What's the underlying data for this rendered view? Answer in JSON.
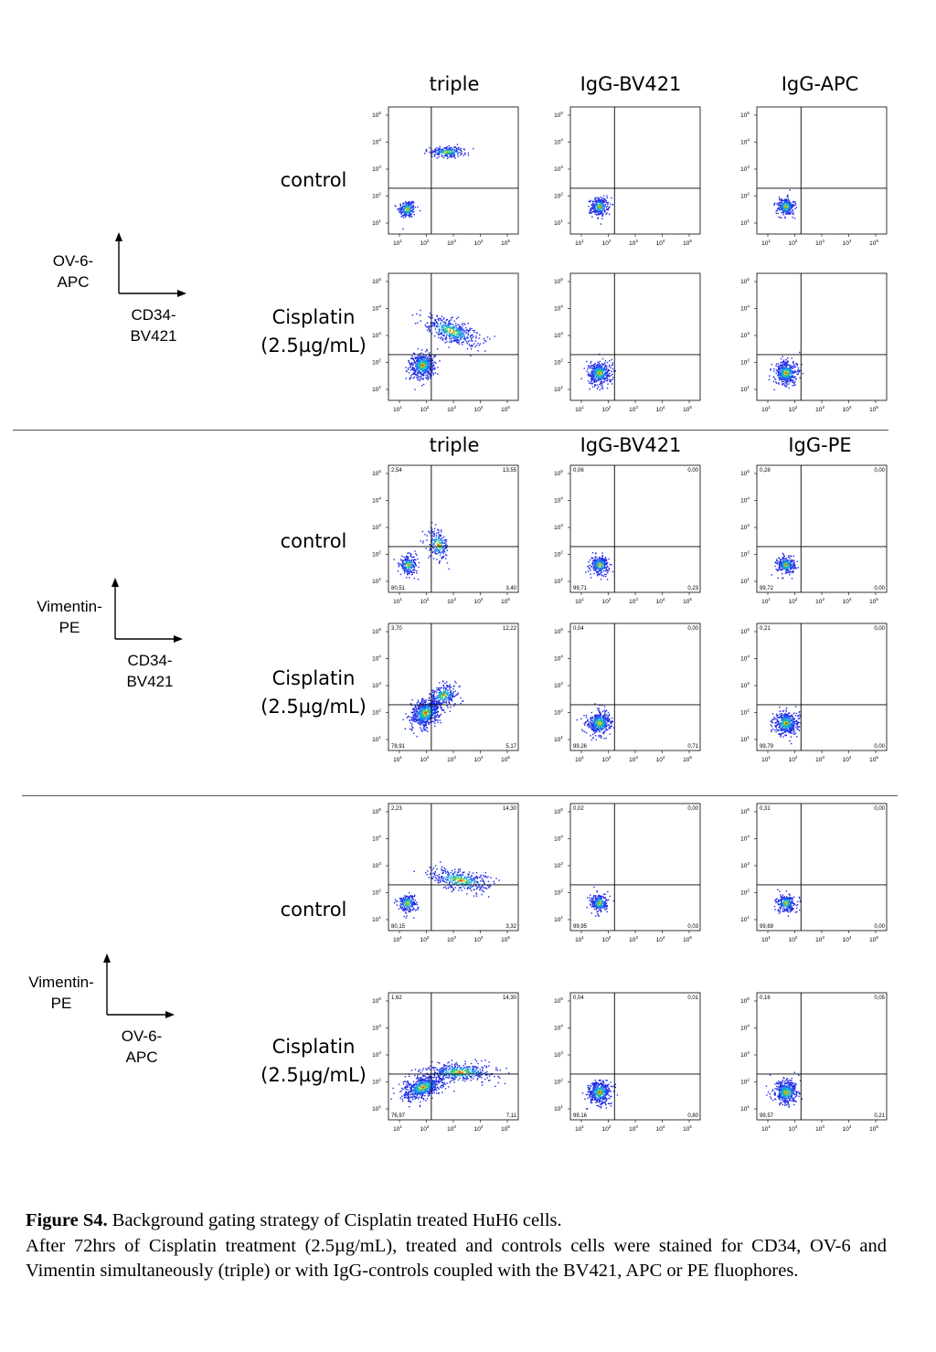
{
  "panels": [
    {
      "id": "ov6-cd34",
      "axis": {
        "y_label": [
          "OV-6-",
          "APC"
        ],
        "x_label": [
          "CD34-",
          "BV421"
        ]
      },
      "columns": [
        "triple",
        "IgG-BV421",
        "IgG-APC"
      ],
      "rows": [
        {
          "label": [
            "control"
          ],
          "plots": [
            {
              "q": [
                "",
                "",
                "",
                ""
              ]
            },
            {
              "q": [
                "",
                "",
                "",
                ""
              ]
            },
            {
              "q": [
                "",
                "",
                "",
                ""
              ]
            }
          ]
        },
        {
          "label": [
            "Cisplatin",
            "(2.5µg/mL)"
          ],
          "plots": [
            {
              "q": [
                "",
                "",
                "",
                ""
              ]
            },
            {
              "q": [
                "",
                "",
                "",
                ""
              ]
            },
            {
              "q": [
                "",
                "",
                "",
                ""
              ]
            }
          ]
        }
      ]
    },
    {
      "id": "vim-cd34",
      "axis": {
        "y_label": [
          "Vimentin-",
          "PE"
        ],
        "x_label": [
          "CD34-",
          "BV421"
        ]
      },
      "columns": [
        "triple",
        "IgG-BV421",
        "IgG-PE"
      ],
      "rows": [
        {
          "label": [
            "control"
          ],
          "plots": [
            {
              "q": [
                "2,54",
                "13,55",
                "80,51",
                "3,40"
              ]
            },
            {
              "q": [
                "0,06",
                "0,00",
                "99,71",
                "0,23"
              ]
            },
            {
              "q": [
                "0,28",
                "0,00",
                "99,72",
                "0,00"
              ]
            }
          ]
        },
        {
          "label": [
            "Cisplatin",
            "(2.5µg/mL)"
          ],
          "plots": [
            {
              "q": [
                "3,70",
                "12,22",
                "78,91",
                "5,17"
              ]
            },
            {
              "q": [
                "0,04",
                "0,00",
                "99,26",
                "0,71"
              ]
            },
            {
              "q": [
                "0,21",
                "0,00",
                "99,79",
                "0,00"
              ]
            }
          ]
        }
      ]
    },
    {
      "id": "vim-ov6",
      "axis": {
        "y_label": [
          "Vimentin-",
          "PE"
        ],
        "x_label": [
          "OV-6-",
          "APC"
        ]
      },
      "columns": [
        "triple",
        "IgG-APC",
        "IgG-PE"
      ],
      "rows": [
        {
          "label": [
            "control"
          ],
          "plots": [
            {
              "q": [
                "2,23",
                "14,30",
                "80,15",
                "3,32"
              ]
            },
            {
              "q": [
                "0,02",
                "0,00",
                "99,95",
                "0,03"
              ]
            },
            {
              "q": [
                "0,31",
                "0,00",
                "99,69",
                "0,00"
              ]
            }
          ]
        },
        {
          "label": [
            "Cisplatin",
            "(2.5µg/mL)"
          ],
          "plots": [
            {
              "q": [
                "1,62",
                "14,30",
                "76,97",
                "7,11"
              ]
            },
            {
              "q": [
                "0,04",
                "0,01",
                "99,16",
                "0,80"
              ]
            },
            {
              "q": [
                "0,16",
                "0,05",
                "99,57",
                "0,21"
              ]
            }
          ]
        }
      ]
    }
  ],
  "axis_ticks": [
    "1",
    "2",
    "3",
    "4",
    "5"
  ],
  "tick_base": "10",
  "caption": {
    "label": "Figure S4.",
    "title": " Background gating strategy of Cisplatin treated HuH6 cells.",
    "text": "After 72hrs of Cisplatin treatment (2.5µg/mL), treated and controls cells were stained for CD34, OV-6 and Vimentin simultaneously (triple) or with IgG-controls coupled with the BV421, APC or PE fluophores."
  }
}
